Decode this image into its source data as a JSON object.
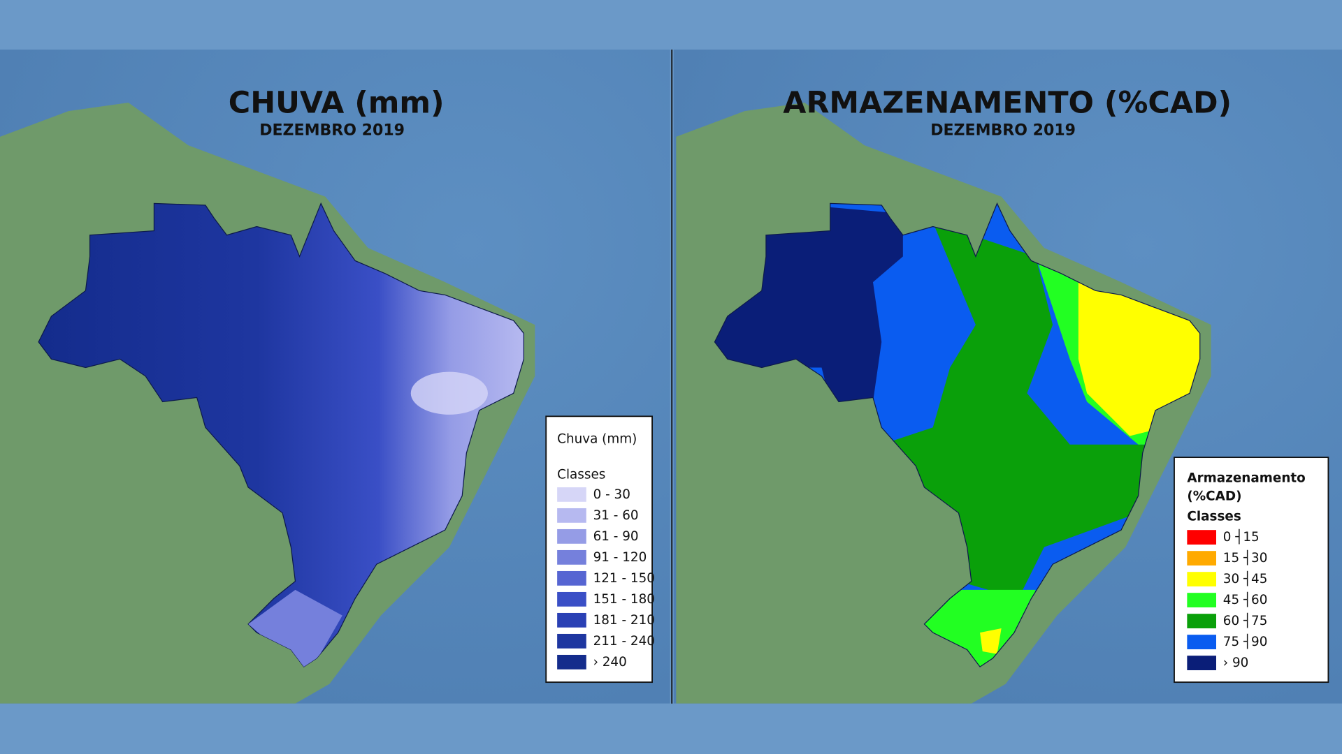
{
  "maps": [
    {
      "title": "CHUVA (mm)",
      "subtitle": "DEZEMBRO 2019",
      "legend": {
        "title": "Chuva (mm)",
        "subtitle": "Classes",
        "classes": [
          {
            "label": "0 - 30",
            "color": "#d6d6f7"
          },
          {
            "label": "31 - 60",
            "color": "#b6b9f0"
          },
          {
            "label": "61 - 90",
            "color": "#959ce6"
          },
          {
            "label": "91 - 120",
            "color": "#7580dc"
          },
          {
            "label": "121 - 150",
            "color": "#5665d2"
          },
          {
            "label": "151 - 180",
            "color": "#3a4fc6"
          },
          {
            "label": "181 - 210",
            "color": "#2a40b4"
          },
          {
            "label": "211 - 240",
            "color": "#1e36a0"
          },
          {
            "label": "› 240",
            "color": "#142c8c"
          }
        ]
      }
    },
    {
      "title": "ARMAZENAMENTO (%CAD)",
      "subtitle": "DEZEMBRO 2019",
      "legend": {
        "title": "Armazenamento",
        "title_line2": "(%CAD)",
        "subtitle": "Classes",
        "classes": [
          {
            "label": "0 ┤15",
            "color": "#ff0000"
          },
          {
            "label": "15 ┤30",
            "color": "#ffaa00"
          },
          {
            "label": "30 ┤45",
            "color": "#ffff00"
          },
          {
            "label": "45 ┤60",
            "color": "#22ff22"
          },
          {
            "label": "60 ┤75",
            "color": "#0aa00a"
          },
          {
            "label": "75 ┤90",
            "color": "#0a5cf0"
          },
          {
            "label": "› 90",
            "color": "#0a1e78"
          }
        ]
      }
    }
  ]
}
